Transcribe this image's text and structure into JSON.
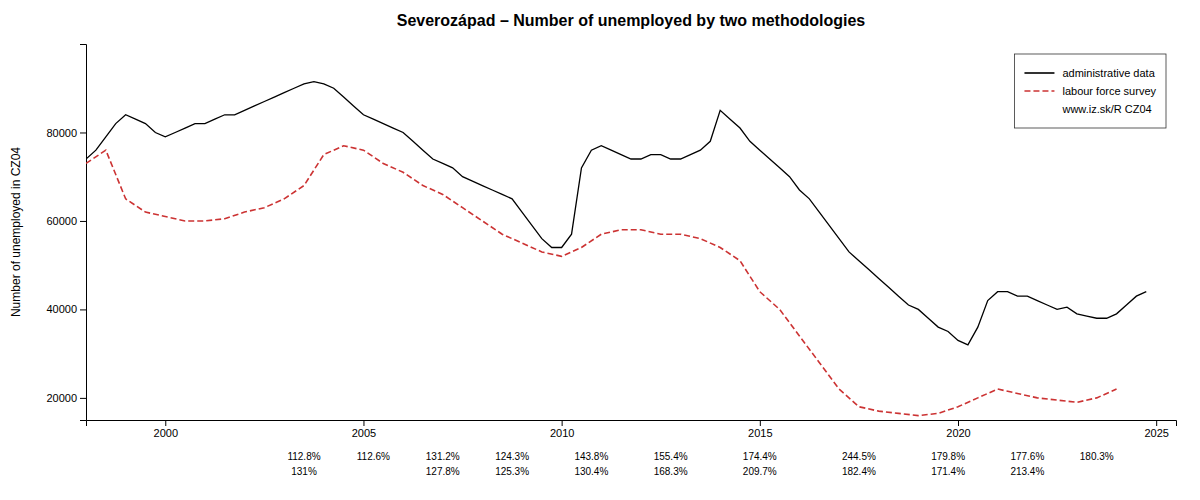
{
  "chart_data": {
    "type": "line",
    "title": "Severozápad – Number of unemployed  by two methodologies",
    "ylabel": "Number of unemployed in CZ04",
    "xlim": [
      1998.0,
      2025.5
    ],
    "xticks": [
      2000,
      2005,
      2010,
      2015,
      2020,
      2025
    ],
    "ylim": [
      15000,
      100000
    ],
    "yticks": [
      20000,
      40000,
      60000,
      80000
    ],
    "legend": "upper right",
    "legend_note": "www.iz.sk/R CZ04",
    "series": [
      {
        "name": "administrative data",
        "color": "black",
        "line_style": "solid",
        "x": [
          1998.0,
          1998.25,
          1998.5,
          1998.75,
          1999.0,
          1999.25,
          1999.5,
          1999.75,
          2000.0,
          2000.25,
          2000.5,
          2000.75,
          2001.0,
          2001.25,
          2001.5,
          2001.75,
          2002.0,
          2002.25,
          2002.5,
          2002.75,
          2003.0,
          2003.25,
          2003.5,
          2003.75,
          2004.0,
          2004.25,
          2004.5,
          2004.75,
          2005.0,
          2005.25,
          2005.5,
          2005.75,
          2006.0,
          2006.25,
          2006.5,
          2006.75,
          2007.0,
          2007.25,
          2007.5,
          2007.75,
          2008.0,
          2008.25,
          2008.5,
          2008.75,
          2009.0,
          2009.25,
          2009.5,
          2009.75,
          2010.0,
          2010.25,
          2010.5,
          2010.75,
          2011.0,
          2011.25,
          2011.5,
          2011.75,
          2012.0,
          2012.25,
          2012.5,
          2012.75,
          2013.0,
          2013.25,
          2013.5,
          2013.75,
          2014.0,
          2014.25,
          2014.5,
          2014.75,
          2015.0,
          2015.25,
          2015.5,
          2015.75,
          2016.0,
          2016.25,
          2016.5,
          2016.75,
          2017.0,
          2017.25,
          2017.5,
          2017.75,
          2018.0,
          2018.25,
          2018.5,
          2018.75,
          2019.0,
          2019.25,
          2019.5,
          2019.75,
          2020.0,
          2020.25,
          2020.5,
          2020.75,
          2021.0,
          2021.25,
          2021.5,
          2021.75,
          2022.0,
          2022.25,
          2022.5,
          2022.75,
          2023.0,
          2023.25,
          2023.5,
          2023.75,
          2024.0,
          2024.25,
          2024.5,
          2024.75
        ],
        "values": [
          74000,
          76000,
          79000,
          82000,
          84000,
          83000,
          82000,
          80000,
          79000,
          80000,
          81000,
          82000,
          82000,
          83000,
          84000,
          84000,
          85000,
          86000,
          87000,
          88000,
          89000,
          90000,
          91000,
          91500,
          91000,
          90000,
          88000,
          86000,
          84000,
          83000,
          82000,
          81000,
          80000,
          78000,
          76000,
          74000,
          73000,
          72000,
          70000,
          69000,
          68000,
          67000,
          66000,
          65000,
          62000,
          59000,
          56000,
          54000,
          54000,
          57000,
          72000,
          76000,
          77000,
          76000,
          75000,
          74000,
          74000,
          75000,
          75000,
          74000,
          74000,
          75000,
          76000,
          78000,
          85000,
          83000,
          81000,
          78000,
          76000,
          74000,
          72000,
          70000,
          67000,
          65000,
          62000,
          59000,
          56000,
          53000,
          51000,
          49000,
          47000,
          45000,
          43000,
          41000,
          40000,
          38000,
          36000,
          35000,
          33000,
          32000,
          36000,
          42000,
          44000,
          44000,
          43000,
          43000,
          42000,
          41000,
          40000,
          40500,
          39000,
          38500,
          38000,
          38000,
          39000,
          41000,
          43000,
          44000
        ]
      },
      {
        "name": "labour force survey",
        "color": "#CC3333",
        "line_style": "dashed",
        "x": [
          1998.0,
          1998.5,
          1999.0,
          1999.5,
          2000.0,
          2000.5,
          2001.0,
          2001.5,
          2002.0,
          2002.5,
          2003.0,
          2003.5,
          2004.0,
          2004.5,
          2005.0,
          2005.5,
          2006.0,
          2006.5,
          2007.0,
          2007.5,
          2008.0,
          2008.5,
          2009.0,
          2009.5,
          2010.0,
          2010.5,
          2011.0,
          2011.5,
          2012.0,
          2012.5,
          2013.0,
          2013.5,
          2014.0,
          2014.5,
          2015.0,
          2015.5,
          2016.0,
          2016.5,
          2017.0,
          2017.5,
          2018.0,
          2018.5,
          2019.0,
          2019.5,
          2020.0,
          2020.5,
          2021.0,
          2021.5,
          2022.0,
          2022.5,
          2023.0,
          2023.5,
          2024.0
        ],
        "values": [
          73000,
          76000,
          65000,
          62000,
          61000,
          60000,
          60000,
          60500,
          62000,
          63000,
          65000,
          68000,
          75000,
          77000,
          76000,
          73000,
          71000,
          68000,
          66000,
          63000,
          60000,
          57000,
          55000,
          53000,
          52000,
          54000,
          57000,
          58000,
          58000,
          57000,
          57000,
          56000,
          54000,
          51000,
          44000,
          40000,
          34000,
          28000,
          22000,
          18000,
          17000,
          16500,
          16000,
          16500,
          18000,
          20000,
          22000,
          21000,
          20000,
          19500,
          19000,
          20000,
          22000
        ]
      }
    ],
    "annotations": [
      {
        "x": 2003.5,
        "texts": [
          "112.8%",
          "131%"
        ]
      },
      {
        "x": 2005.25,
        "texts": [
          "112.6%"
        ]
      },
      {
        "x": 2007.0,
        "texts": [
          "131.2%",
          "127.8%"
        ]
      },
      {
        "x": 2008.75,
        "texts": [
          "124.3%",
          "125.3%"
        ]
      },
      {
        "x": 2010.75,
        "texts": [
          "143.8%",
          "130.4%"
        ]
      },
      {
        "x": 2012.75,
        "texts": [
          "155.4%",
          "168.3%"
        ]
      },
      {
        "x": 2015.0,
        "texts": [
          "174.4%",
          "209.7%"
        ]
      },
      {
        "x": 2017.5,
        "texts": [
          "244.5%",
          "182.4%"
        ]
      },
      {
        "x": 2019.75,
        "texts": [
          "179.8%",
          "171.4%"
        ]
      },
      {
        "x": 2021.75,
        "texts": [
          "177.6%",
          "213.4%"
        ]
      },
      {
        "x": 2023.5,
        "texts": [
          "180.3%"
        ]
      }
    ]
  }
}
